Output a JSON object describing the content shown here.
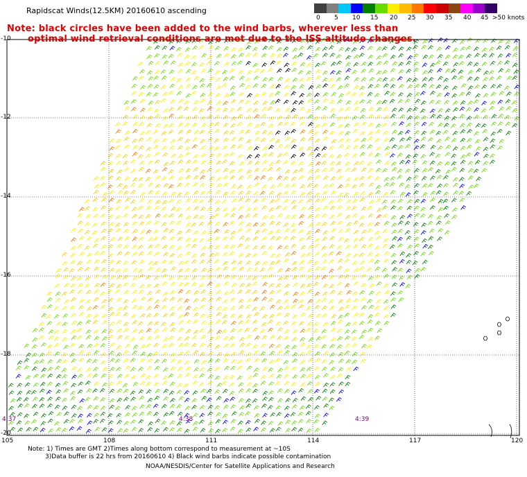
{
  "title": "Rapidscat Winds(12.5KM) 20160610 ascending",
  "note_line1": "Note: black circles have been added to the wind barbs, wherever less than",
  "note_line2": "optimal wind retrieval conditions are met due to the ISS altitude changes.",
  "legend": {
    "labels": [
      "0",
      "5",
      "10",
      "15",
      "20",
      "25",
      "30",
      "35",
      "40",
      "45",
      ">50 knots"
    ],
    "colors": [
      "#404040",
      "#808080",
      "#00c8ff",
      "#0000ff",
      "#008000",
      "#66dd00",
      "#ffee00",
      "#ffbb00",
      "#ff7700",
      "#ff0000",
      "#cc0000",
      "#8b4513",
      "#ff00ff",
      "#9900cc",
      "#330066"
    ]
  },
  "lat_labels": [
    "-10",
    "-12",
    "-14",
    "-16",
    "-18",
    "-20"
  ],
  "lon_labels": [
    "105",
    "108",
    "111",
    "114",
    "117",
    "120"
  ],
  "time_labels": [
    "4:37",
    "4:38",
    "4:39"
  ],
  "footnote_line1": "Note: 1) Times are GMT 2)Times along bottom correspond to measurement at ~10S",
  "footnote_line2": "3)Data buffer is 22 hrs from 20160610 4) Black wind barbs indicate possible contamination",
  "credit": "NOAA/NESDIS/Center for Satellite Applications and Research"
}
